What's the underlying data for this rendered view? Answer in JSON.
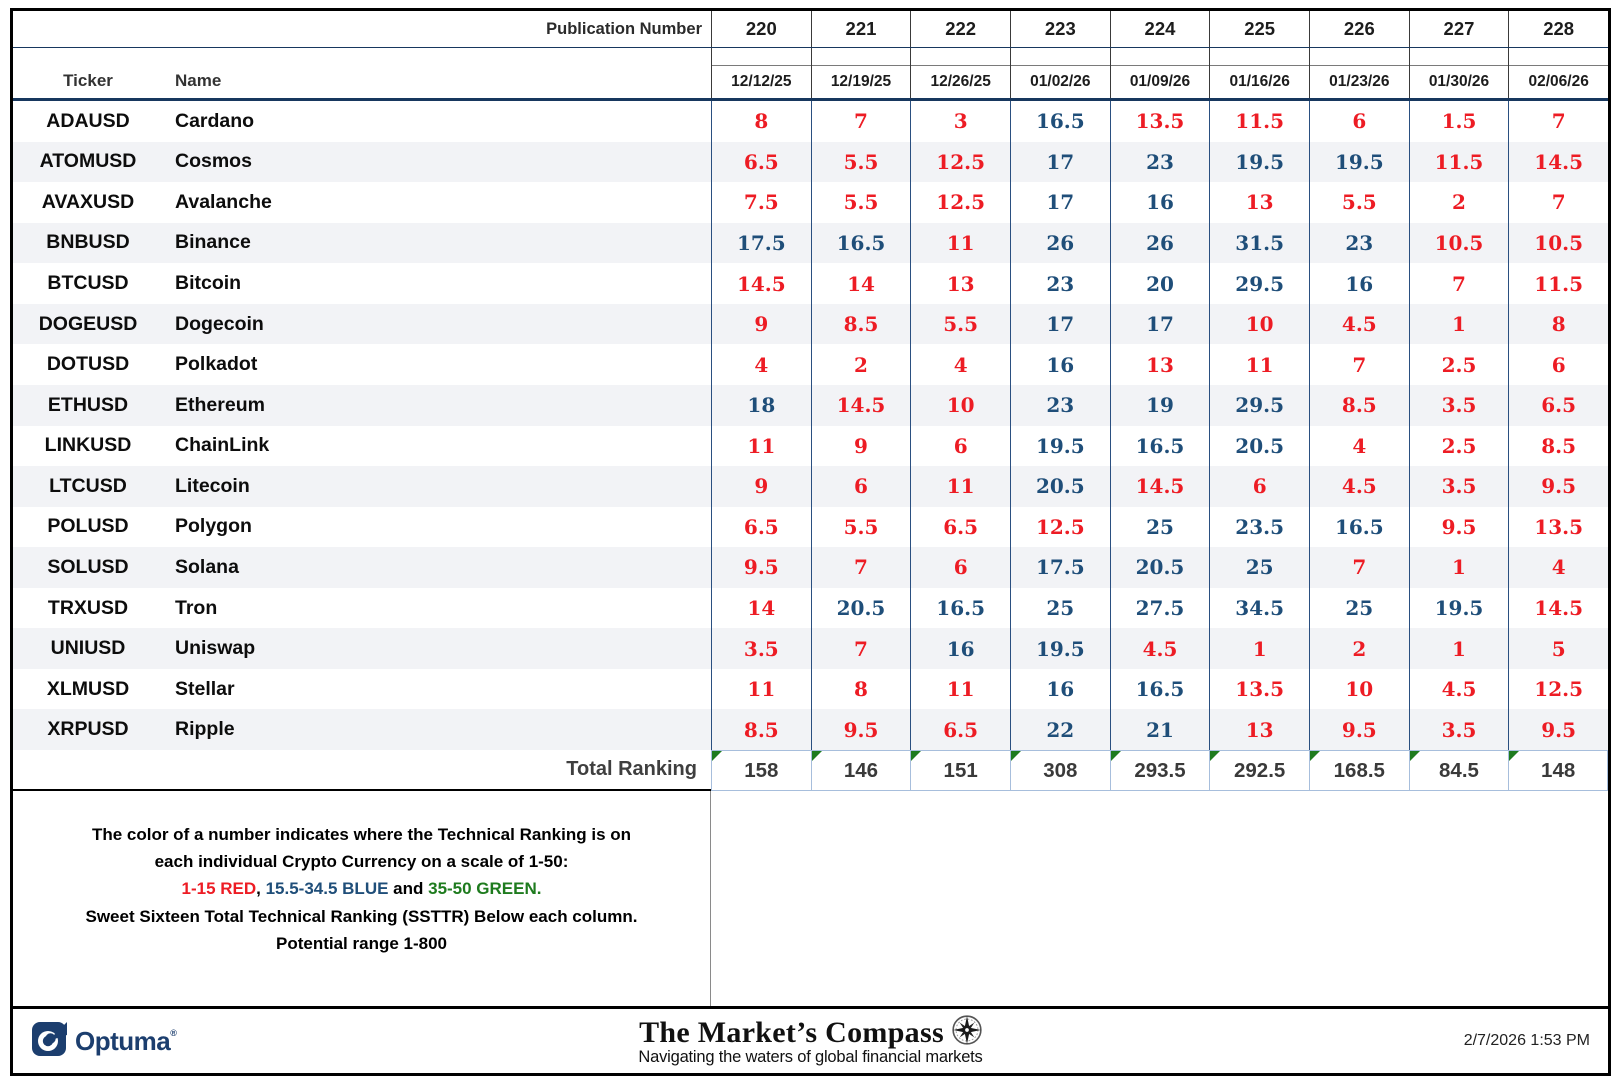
{
  "header": {
    "publication_label": "Publication Number",
    "publication_numbers": [
      "220",
      "221",
      "222",
      "223",
      "224",
      "225",
      "226",
      "227",
      "228"
    ],
    "dates": [
      "12/12/25",
      "12/19/25",
      "12/26/25",
      "01/02/26",
      "01/09/26",
      "01/16/26",
      "01/23/26",
      "01/30/26",
      "02/06/26"
    ],
    "ticker_label": "Ticker",
    "name_label": "Name"
  },
  "rows": [
    {
      "ticker": "ADAUSD",
      "name": "Cardano",
      "values": [
        8,
        7,
        3,
        16.5,
        13.5,
        11.5,
        6,
        1.5,
        7
      ]
    },
    {
      "ticker": "ATOMUSD",
      "name": "Cosmos",
      "values": [
        6.5,
        5.5,
        12.5,
        17,
        23,
        19.5,
        19.5,
        11.5,
        14.5
      ]
    },
    {
      "ticker": "AVAXUSD",
      "name": "Avalanche",
      "values": [
        7.5,
        5.5,
        12.5,
        17,
        16,
        13,
        5.5,
        2,
        7
      ]
    },
    {
      "ticker": "BNBUSD",
      "name": "Binance",
      "values": [
        17.5,
        16.5,
        11,
        26,
        26,
        31.5,
        23,
        10.5,
        10.5
      ]
    },
    {
      "ticker": "BTCUSD",
      "name": "Bitcoin",
      "values": [
        14.5,
        14,
        13,
        23,
        20,
        29.5,
        16,
        7,
        11.5
      ]
    },
    {
      "ticker": "DOGEUSD",
      "name": "Dogecoin",
      "values": [
        9,
        8.5,
        5.5,
        17,
        17,
        10,
        4.5,
        1,
        8
      ]
    },
    {
      "ticker": "DOTUSD",
      "name": "Polkadot",
      "values": [
        4,
        2,
        4,
        16,
        13,
        11,
        7,
        2.5,
        6
      ]
    },
    {
      "ticker": "ETHUSD",
      "name": "Ethereum",
      "values": [
        18,
        14.5,
        10,
        23,
        19,
        29.5,
        8.5,
        3.5,
        6.5
      ]
    },
    {
      "ticker": "LINKUSD",
      "name": "ChainLink",
      "values": [
        11,
        9,
        6,
        19.5,
        16.5,
        20.5,
        4,
        2.5,
        8.5
      ]
    },
    {
      "ticker": "LTCUSD",
      "name": "Litecoin",
      "values": [
        9,
        6,
        11,
        20.5,
        14.5,
        6,
        4.5,
        3.5,
        9.5
      ]
    },
    {
      "ticker": "POLUSD",
      "name": "Polygon",
      "values": [
        6.5,
        5.5,
        6.5,
        12.5,
        25,
        23.5,
        16.5,
        9.5,
        13.5
      ]
    },
    {
      "ticker": "SOLUSD",
      "name": "Solana",
      "values": [
        9.5,
        7,
        6,
        17.5,
        20.5,
        25,
        7,
        1,
        4
      ]
    },
    {
      "ticker": "TRXUSD",
      "name": "Tron",
      "values": [
        14,
        20.5,
        16.5,
        25,
        27.5,
        34.5,
        25,
        19.5,
        14.5
      ]
    },
    {
      "ticker": "UNIUSD",
      "name": "Uniswap",
      "values": [
        3.5,
        7,
        16,
        19.5,
        4.5,
        1,
        2,
        1,
        5
      ]
    },
    {
      "ticker": "XLMUSD",
      "name": "Stellar",
      "values": [
        11,
        8,
        11,
        16,
        16.5,
        13.5,
        10,
        4.5,
        12.5
      ]
    },
    {
      "ticker": "XRPUSD",
      "name": "Ripple",
      "values": [
        8.5,
        9.5,
        6.5,
        22,
        21,
        13,
        9.5,
        3.5,
        9.5
      ]
    }
  ],
  "totals": {
    "label": "Total Ranking",
    "values": [
      158,
      146,
      151,
      308,
      293.5,
      292.5,
      168.5,
      84.5,
      148
    ]
  },
  "color_rule": {
    "red_max": 15,
    "blue_max": 34.5,
    "red": "#ED1C24",
    "blue": "#1F4E79",
    "green": "#1E7B1E"
  },
  "legend": {
    "line1": "The color of a number indicates where the Technical Ranking is on",
    "line2": "each individual Crypto Currency on a scale of 1-50:",
    "line3_parts": [
      {
        "text": "1-15 RED",
        "color": "#ED1C24"
      },
      {
        "text": ", ",
        "color": "#000000"
      },
      {
        "text": "15.5-34.5 BLUE",
        "color": "#1F4E79"
      },
      {
        "text": " and ",
        "color": "#000000"
      },
      {
        "text": "35-50 GREEN.",
        "color": "#1E7B1E"
      }
    ],
    "line4": "Sweet Sixteen Total Technical Ranking (SSTTR) Below each column.",
    "line5": "Potential range 1-800"
  },
  "footer": {
    "brand": "Optuma",
    "trademark": "®",
    "title": "The Market’s Compass",
    "tagline": "Navigating the waters of global financial markets",
    "timestamp": "2/7/2026 1:53 PM"
  }
}
